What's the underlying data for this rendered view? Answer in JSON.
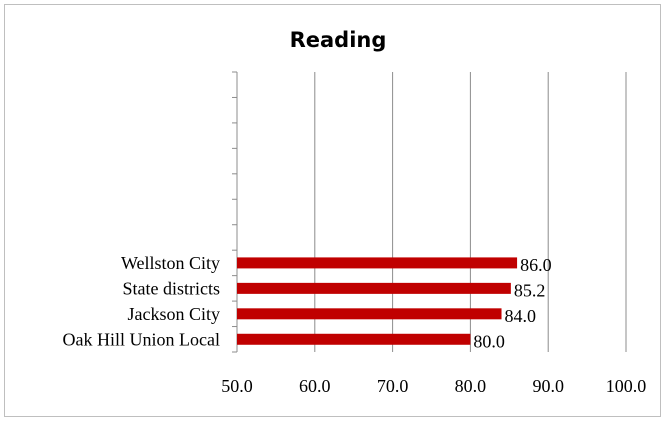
{
  "chart_data": {
    "type": "bar",
    "orientation": "horizontal",
    "title": "Reading",
    "categories": [
      "Oak Hill Union Local",
      "Jackson City",
      "State districts",
      "Wellston City"
    ],
    "values": [
      80.0,
      84.0,
      85.2,
      86.0
    ],
    "data_labels": [
      "80.0",
      "84.0",
      "85.2",
      "86.0"
    ],
    "xlim": [
      50,
      100
    ],
    "x_ticks": [
      "50.0",
      "60.0",
      "70.0",
      "80.0",
      "90.0",
      "100.0"
    ],
    "grid": "vertical",
    "legend": "none",
    "bar_color": "#c00000"
  }
}
